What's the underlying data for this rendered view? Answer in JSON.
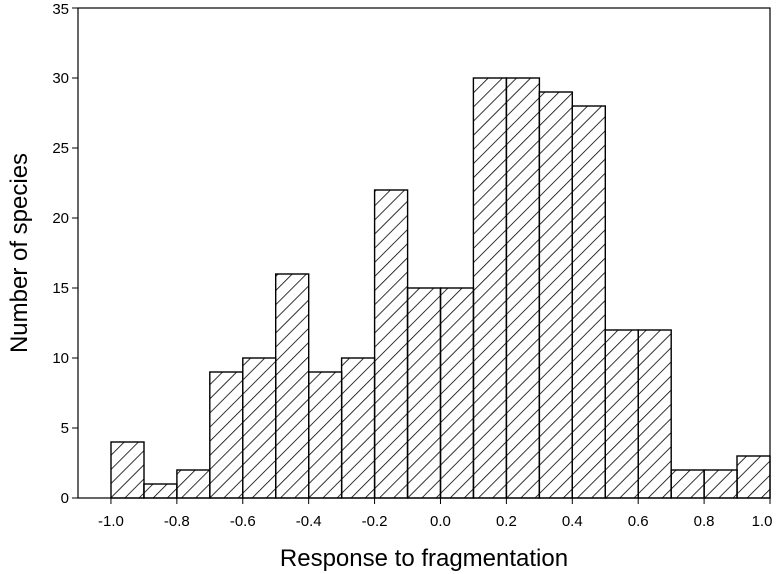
{
  "chart_data": {
    "type": "bar",
    "title": "",
    "xlabel": "Response to fragmentation",
    "ylabel": "Number of species",
    "xlim": [
      -1.1,
      1.0
    ],
    "ylim": [
      0,
      35
    ],
    "bin_width": 0.1,
    "bin_starts": [
      -1.0,
      -0.9,
      -0.8,
      -0.7,
      -0.6,
      -0.5,
      -0.4,
      -0.3,
      -0.2,
      -0.1,
      0.0,
      0.1,
      0.2,
      0.3,
      0.4,
      0.5,
      0.6,
      0.7,
      0.8,
      0.9
    ],
    "values": [
      4,
      1,
      2,
      9,
      10,
      16,
      9,
      10,
      22,
      15,
      15,
      30,
      30,
      29,
      28,
      12,
      12,
      2,
      2,
      3
    ],
    "x_ticks": [
      -1.0,
      -0.8,
      -0.6,
      -0.4,
      -0.2,
      0.0,
      0.2,
      0.4,
      0.6,
      0.8,
      1.0
    ],
    "x_tick_labels": [
      "-1.0",
      "-0.8",
      "-0.6",
      "-0.4",
      "-0.2",
      "0.0",
      "0.2",
      "0.4",
      "0.6",
      "0.8",
      "1.0"
    ],
    "y_ticks": [
      0,
      5,
      10,
      15,
      20,
      25,
      30,
      35
    ],
    "y_tick_labels": [
      "0",
      "5",
      "10",
      "15",
      "20",
      "25",
      "30",
      "35"
    ],
    "bar_fill": "hatched",
    "bar_color": "#000000",
    "grid": false,
    "legend": "none"
  }
}
